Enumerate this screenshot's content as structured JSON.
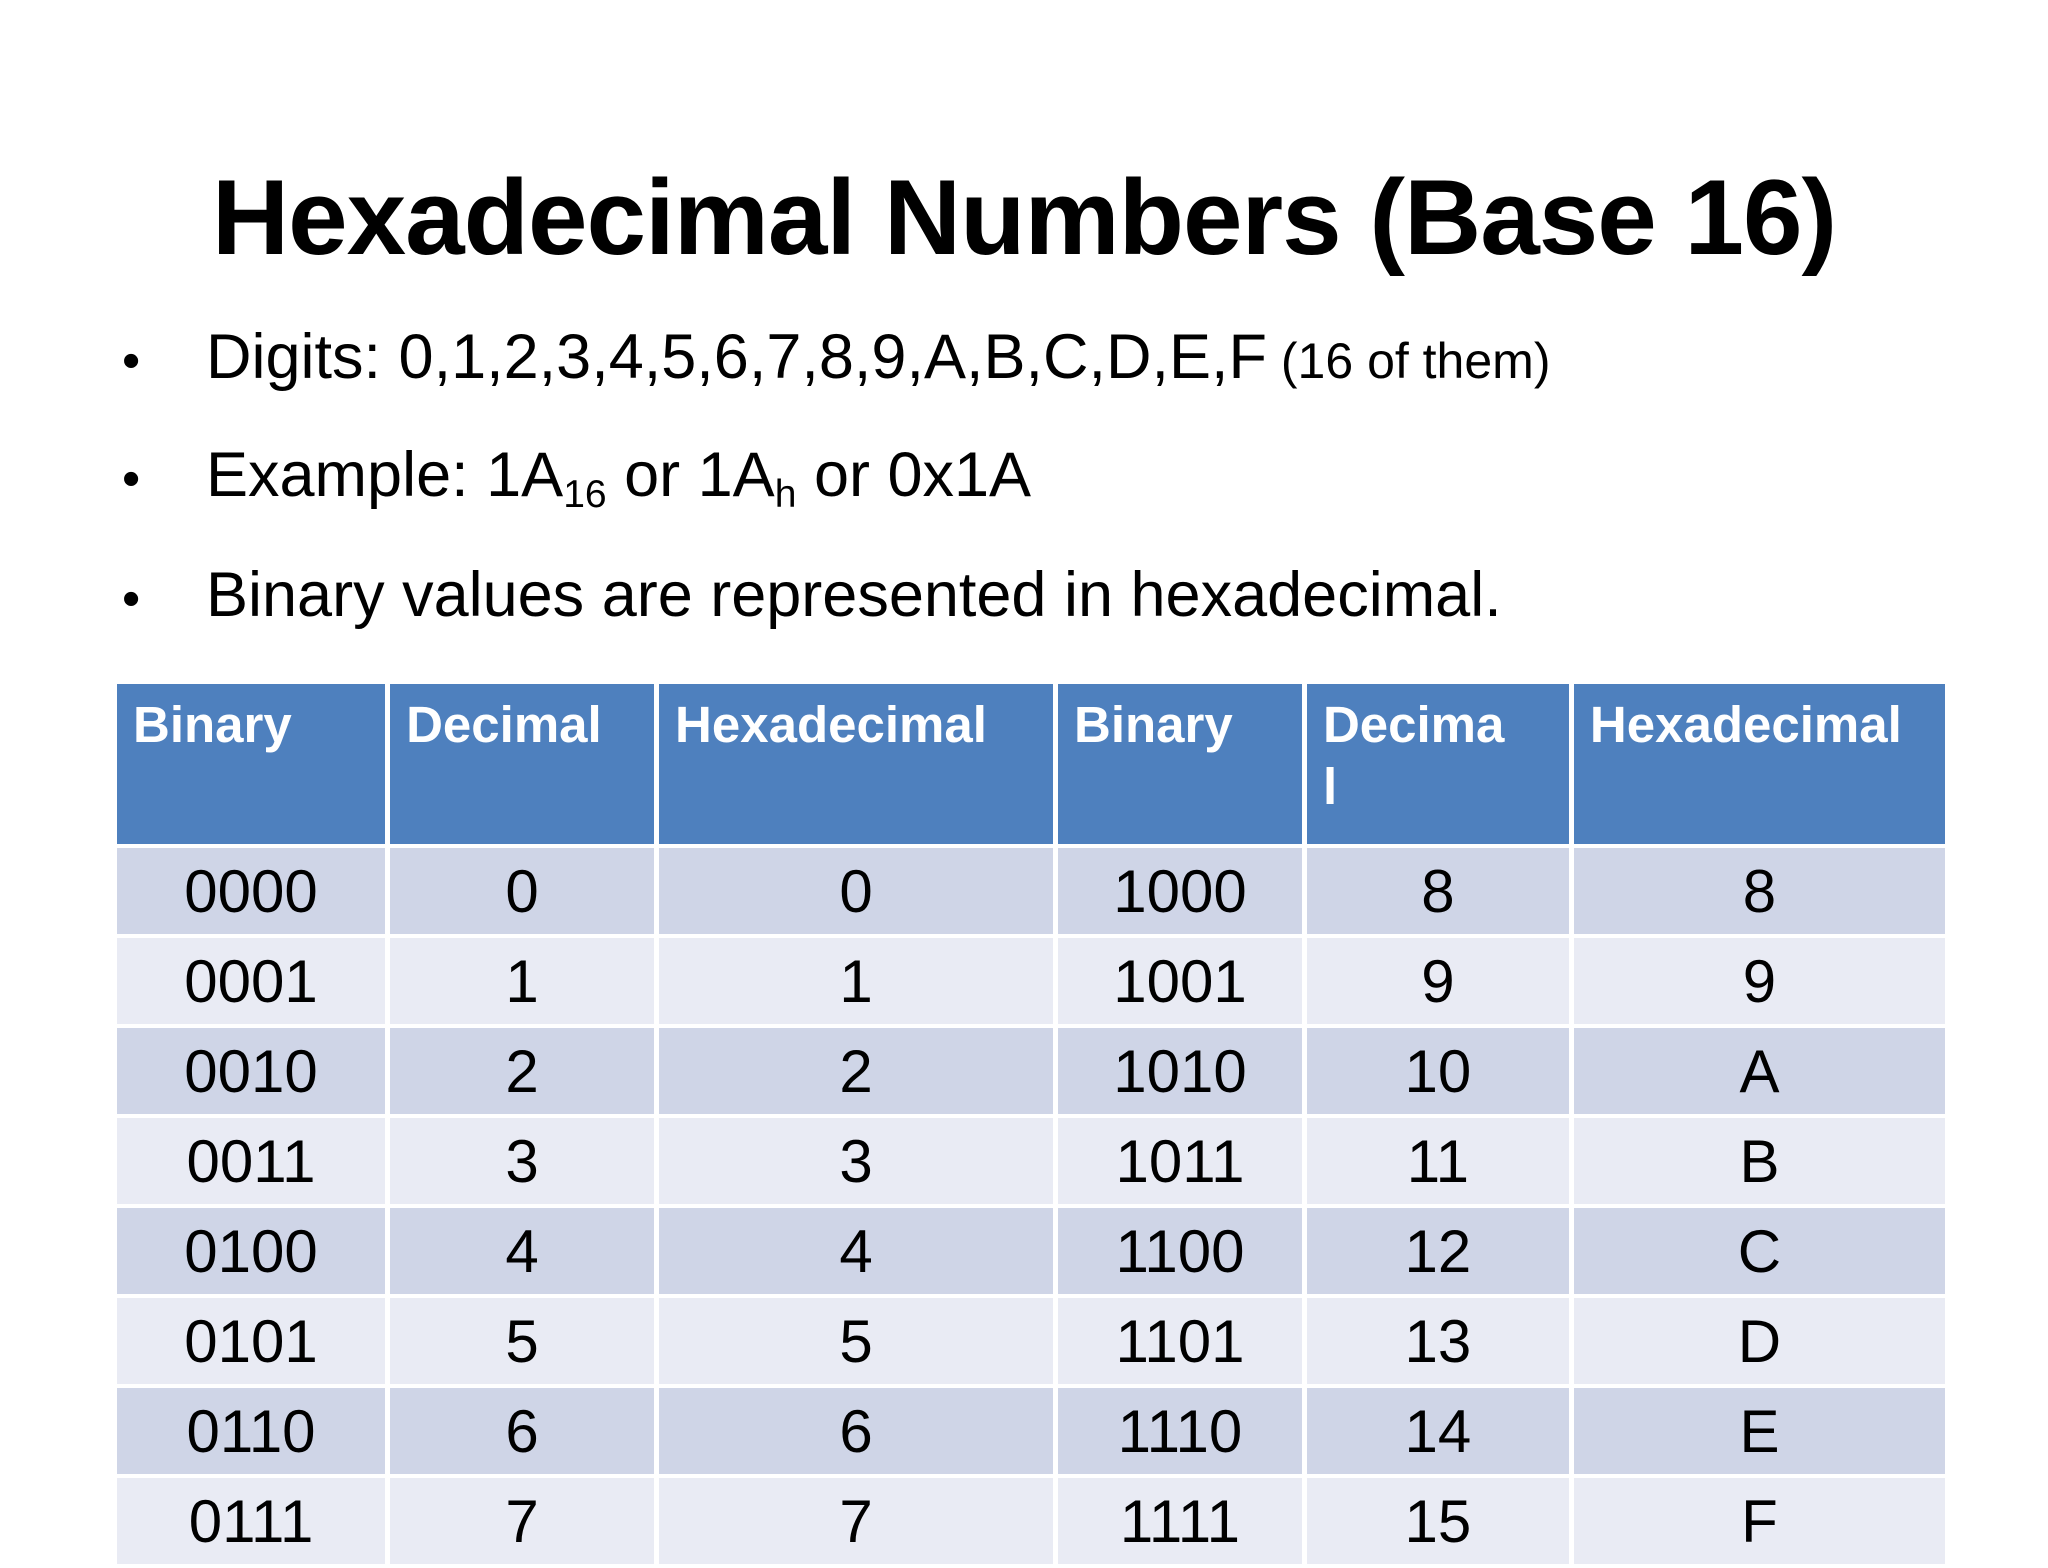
{
  "slide": {
    "title": "Hexadecimal Numbers (Base 16)",
    "bullet_char": "•",
    "bullet1": {
      "main": "Digits: 0,1,2,3,4,5,6,7,8,9,A,B,C,D,E,F",
      "note": " (16 of them)"
    },
    "bullet2": {
      "pre": "Example: 1A",
      "sub1": "16",
      "mid": " or 1A",
      "sub2": "h",
      "end": " or 0x1A"
    },
    "bullet3": {
      "main": "Binary values are represented in hexadecimal."
    }
  },
  "table": {
    "headers": [
      "Binary",
      "Decimal",
      "Hexadecimal",
      "Binary",
      "Decima\nl",
      "Hexadecimal"
    ],
    "rows": [
      [
        "0000",
        "0",
        "0",
        "1000",
        "8",
        "8"
      ],
      [
        "0001",
        "1",
        "1",
        "1001",
        "9",
        "9"
      ],
      [
        "0010",
        "2",
        "2",
        "1010",
        "10",
        "A"
      ],
      [
        "0011",
        "3",
        "3",
        "1011",
        "11",
        "B"
      ],
      [
        "0100",
        "4",
        "4",
        "1100",
        "12",
        "C"
      ],
      [
        "0101",
        "5",
        "5",
        "1101",
        "13",
        "D"
      ],
      [
        "0110",
        "6",
        "6",
        "1110",
        "14",
        "E"
      ],
      [
        "0111",
        "7",
        "7",
        "1111",
        "15",
        "F"
      ]
    ],
    "colors": {
      "header_bg": "#4e80be",
      "header_text": "#ffffff",
      "row_dark": "#cfd5e7",
      "row_light": "#e9ebf4",
      "grid": "#ffffff",
      "body_text": "#000000"
    }
  }
}
